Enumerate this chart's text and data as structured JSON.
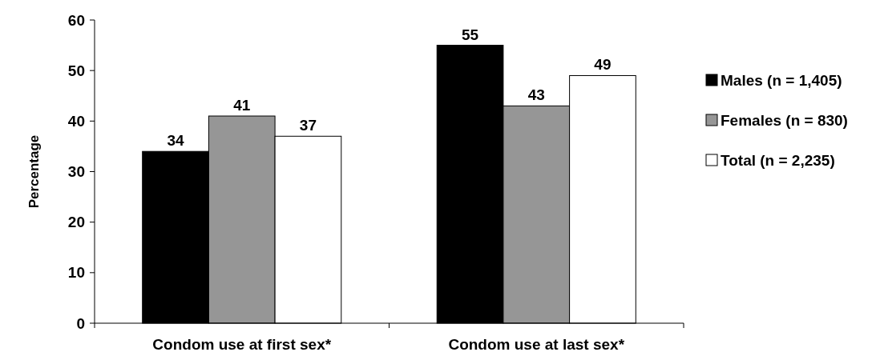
{
  "chart_data": {
    "type": "bar",
    "ylabel": "Percentage",
    "categories": [
      "Condom use at first sex*",
      "Condom use at last sex*"
    ],
    "series": [
      {
        "name": "Males (n = 1,405)",
        "color": "#000000",
        "values": [
          34,
          55
        ]
      },
      {
        "name": "Females (n = 830)",
        "color": "#969696",
        "values": [
          41,
          43
        ]
      },
      {
        "name": "Total (n = 2,235)",
        "color": "#ffffff",
        "values": [
          37,
          49
        ]
      }
    ],
    "ylim": [
      0,
      60
    ],
    "yticks": [
      0,
      10,
      20,
      30,
      40,
      50,
      60
    ],
    "data_labels": true,
    "legend": "right",
    "grid": false
  }
}
